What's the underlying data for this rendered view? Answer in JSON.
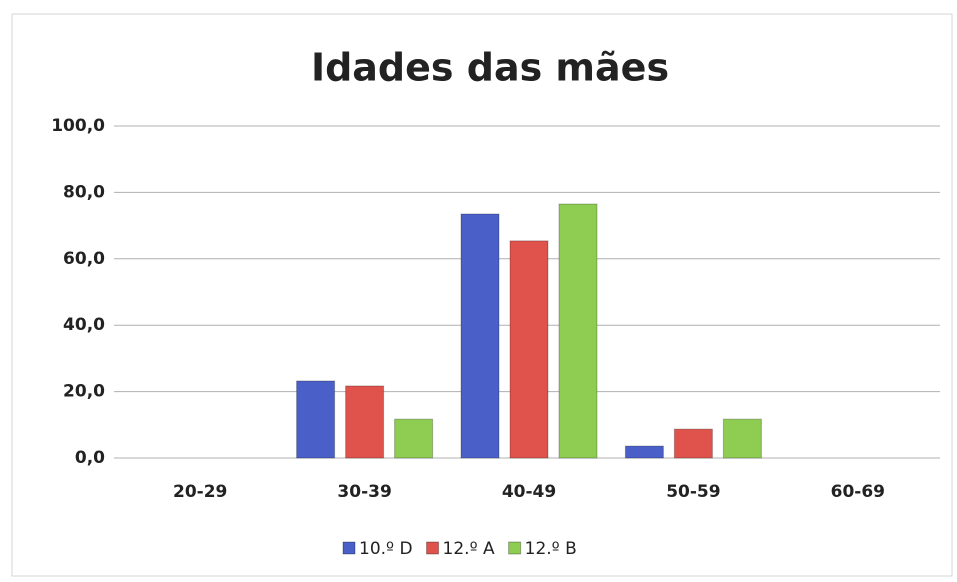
{
  "chart_data": {
    "type": "bar",
    "title": "Idades das mães",
    "categories": [
      "20-29",
      "30-39",
      "40-49",
      "50-59",
      "60-69"
    ],
    "series": [
      {
        "name": "10.º D",
        "color": "#4a5fc8",
        "values": [
          0,
          23.2,
          73.5,
          3.6,
          0
        ]
      },
      {
        "name": "12.º A",
        "color": "#e0524c",
        "values": [
          0,
          21.7,
          65.4,
          8.7,
          0
        ]
      },
      {
        "name": "12.º B",
        "color": "#8fcc52",
        "values": [
          0,
          11.7,
          76.5,
          11.7,
          0
        ]
      }
    ],
    "ylim": [
      0,
      100
    ],
    "yticks": [
      {
        "value": 0,
        "label": "0,0"
      },
      {
        "value": 20,
        "label": "20,0"
      },
      {
        "value": 40,
        "label": "40,0"
      },
      {
        "value": 60,
        "label": "60,0"
      },
      {
        "value": 80,
        "label": "80,0"
      },
      {
        "value": 100,
        "label": "100,0"
      }
    ],
    "grid": true,
    "legend": "bottom"
  }
}
